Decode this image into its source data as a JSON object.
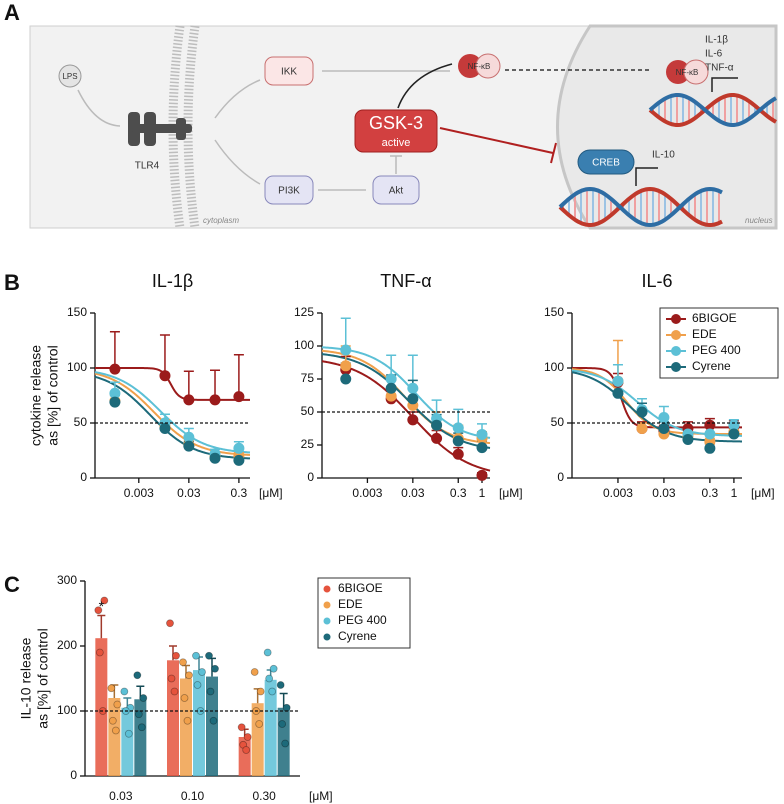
{
  "panel_labels": [
    "A",
    "B",
    "C"
  ],
  "diagram": {
    "lps": "LPS",
    "tlr4": "TLR4",
    "ikk": "IKK",
    "nfkb_cytoplasm": "NF-κB",
    "gsk3": "GSK-3",
    "gsk3_state": "active",
    "pi3k": "PI3K",
    "akt": "Akt",
    "creb": "CREB",
    "il10": "IL-10",
    "nfkb_nucleus": "NF-κB",
    "targets": [
      "IL-1β",
      "IL-6",
      "TNF-α"
    ],
    "cytoplasm": "cytoplasm",
    "nucleus": "nucleus"
  },
  "chart_data": [
    {
      "type": "dose-response",
      "title": "IL-1β",
      "y_label": [
        "cytokine release",
        "as [%] of control"
      ],
      "x_unit": "[μM]",
      "x_scale": "log",
      "xlim": [
        0.0004,
        0.5
      ],
      "xticks": [
        0.003,
        0.03,
        0.3
      ],
      "ylim": [
        0,
        150
      ],
      "yticks": [
        0,
        50,
        100,
        150
      ],
      "reference_line": 50,
      "x": [
        0.001,
        0.01,
        0.03,
        0.1,
        0.3
      ],
      "series": [
        {
          "color": "#9b1b1b",
          "values": [
            99,
            93,
            71,
            71,
            74
          ],
          "errors": [
            34,
            37,
            26,
            27,
            38
          ],
          "fit": {
            "top": 100,
            "bottom": 71,
            "ic50": 0.013,
            "hill": 5
          }
        },
        {
          "color": "#f0a04b",
          "values": [
            70,
            47,
            30,
            20,
            20
          ],
          "errors": [
            8,
            6,
            4,
            3,
            3
          ],
          "fit": {
            "top": 100,
            "bottom": 20,
            "ic50": 0.006,
            "hill": 1
          }
        },
        {
          "color": "#5cc0d6",
          "values": [
            77,
            50,
            37,
            22,
            27
          ],
          "errors": [
            10,
            8,
            8,
            4,
            6
          ],
          "fit": {
            "top": 100,
            "bottom": 22,
            "ic50": 0.008,
            "hill": 1
          }
        },
        {
          "color": "#1d6a7a",
          "values": [
            69,
            45,
            29,
            18,
            16
          ],
          "errors": [
            6,
            6,
            4,
            3,
            3
          ],
          "fit": {
            "top": 98,
            "bottom": 17,
            "ic50": 0.005,
            "hill": 1
          }
        }
      ]
    },
    {
      "type": "dose-response",
      "title": "TNF-α",
      "x_unit": "[μM]",
      "x_scale": "log",
      "xlim": [
        0.0003,
        1.5
      ],
      "xticks": [
        0.003,
        0.03,
        0.3,
        1
      ],
      "ylim": [
        0,
        125
      ],
      "yticks": [
        0,
        25,
        50,
        75,
        100,
        125
      ],
      "reference_line": 50,
      "x": [
        0.001,
        0.01,
        0.03,
        0.1,
        0.3,
        1
      ],
      "series": [
        {
          "color": "#9b1b1b",
          "values": [
            82,
            60,
            44,
            30,
            18,
            2
          ],
          "errors": [
            10,
            8,
            6,
            6,
            5,
            2
          ],
          "fit": {
            "top": 92,
            "bottom": 0,
            "ic50": 0.03,
            "hill": 0.7
          }
        },
        {
          "color": "#f0a04b",
          "values": [
            85,
            62,
            55,
            40,
            30,
            30
          ],
          "errors": [
            15,
            12,
            12,
            10,
            10,
            5
          ],
          "fit": {
            "top": 98,
            "bottom": 25,
            "ic50": 0.02,
            "hill": 0.9
          }
        },
        {
          "color": "#5cc0d6",
          "values": [
            97,
            75,
            68,
            45,
            38,
            33
          ],
          "errors": [
            24,
            18,
            25,
            14,
            14,
            8
          ],
          "fit": {
            "top": 100,
            "bottom": 28,
            "ic50": 0.035,
            "hill": 0.9
          }
        },
        {
          "color": "#1d6a7a",
          "values": [
            75,
            68,
            60,
            40,
            28,
            23
          ],
          "errors": [
            12,
            10,
            14,
            8,
            6,
            5
          ],
          "fit": {
            "top": 96,
            "bottom": 20,
            "ic50": 0.025,
            "hill": 0.8
          }
        }
      ]
    },
    {
      "type": "dose-response",
      "title": "IL-6",
      "x_unit": "[μM]",
      "legend": "upper right",
      "x_scale": "log",
      "xlim": [
        0.0003,
        1.5
      ],
      "xticks": [
        0.003,
        0.03,
        0.3,
        1
      ],
      "ylim": [
        0,
        150
      ],
      "yticks": [
        0,
        50,
        100,
        150
      ],
      "reference_line": 50,
      "x": [
        0.003,
        0.01,
        0.03,
        0.1,
        0.3,
        1
      ],
      "series": [
        {
          "name": "6BIGOE",
          "color": "#9b1b1b",
          "values": [
            87,
            45,
            43,
            45,
            48,
            47
          ],
          "errors": [
            8,
            6,
            5,
            6,
            6,
            5
          ],
          "fit": {
            "top": 100,
            "bottom": 46,
            "ic50": 0.0035,
            "hill": 4
          }
        },
        {
          "name": "EDE",
          "color": "#f0a04b",
          "values": [
            88,
            45,
            40,
            38,
            33,
            42
          ],
          "errors": [
            37,
            5,
            4,
            4,
            3,
            5
          ],
          "fit": {
            "top": 100,
            "bottom": 40,
            "ic50": 0.0045,
            "hill": 1.5
          }
        },
        {
          "name": "PEG 400",
          "color": "#5cc0d6",
          "values": [
            88,
            62,
            55,
            40,
            40,
            48
          ],
          "errors": [
            15,
            10,
            10,
            6,
            6,
            5
          ],
          "fit": {
            "top": 100,
            "bottom": 38,
            "ic50": 0.008,
            "hill": 1
          }
        },
        {
          "name": "Cyrene",
          "color": "#1d6a7a",
          "values": [
            77,
            60,
            45,
            35,
            27,
            40
          ],
          "errors": [
            10,
            8,
            6,
            5,
            4,
            5
          ],
          "fit": {
            "top": 100,
            "bottom": 33,
            "ic50": 0.005,
            "hill": 1
          }
        }
      ]
    },
    {
      "type": "bar",
      "y_label": [
        "IL-10 release",
        "as [%] of control"
      ],
      "x_unit": "[μM]",
      "legend": "right",
      "categories": [
        "0.03",
        "0.10",
        "0.30"
      ],
      "ylim": [
        0,
        300
      ],
      "yticks": [
        0,
        100,
        200,
        300
      ],
      "reference_line": 100,
      "series": [
        {
          "name": "6BIGOE",
          "color": "#e5533d",
          "values": [
            212,
            178,
            60
          ],
          "errors": [
            35,
            22,
            12
          ],
          "significance": [
            "*",
            null,
            null
          ],
          "points": [
            [
              255,
              270,
              190,
              100
            ],
            [
              235,
              185,
              150,
              130
            ],
            [
              75,
              60,
              48,
              40
            ]
          ]
        },
        {
          "name": "EDE",
          "color": "#f0a04b",
          "values": [
            120,
            150,
            112
          ],
          "errors": [
            20,
            20,
            22
          ],
          "points": [
            [
              135,
              110,
              85,
              70
            ],
            [
              175,
              155,
              120,
              85
            ],
            [
              160,
              130,
              100,
              80
            ]
          ]
        },
        {
          "name": "PEG 400",
          "color": "#5cc0d6",
          "values": [
            105,
            163,
            148
          ],
          "errors": [
            15,
            20,
            15
          ],
          "points": [
            [
              130,
              105,
              100,
              65
            ],
            [
              185,
              160,
              140,
              100
            ],
            [
              190,
              165,
              150,
              130
            ]
          ]
        },
        {
          "name": "Cyrene",
          "color": "#1d6a7a",
          "values": [
            118,
            153,
            105
          ],
          "errors": [
            20,
            28,
            22
          ],
          "points": [
            [
              155,
              120,
              95,
              75
            ],
            [
              185,
              165,
              130,
              85
            ],
            [
              140,
              105,
              80,
              50
            ]
          ]
        }
      ]
    }
  ]
}
